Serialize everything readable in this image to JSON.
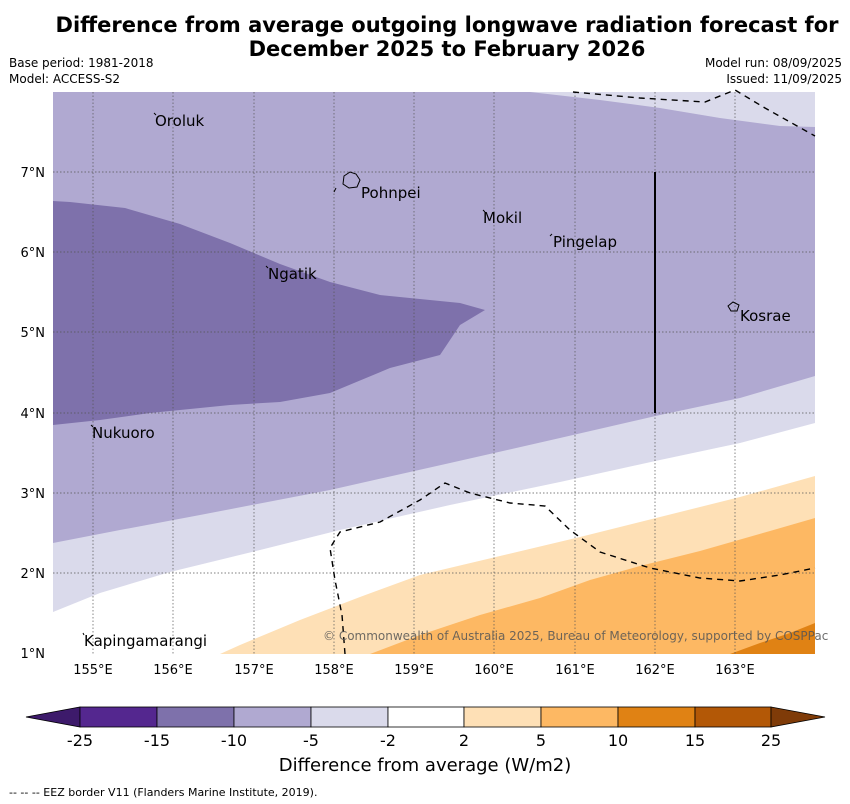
{
  "title_line1": "Difference from average outgoing longwave radiation forecast for",
  "title_line2": "December 2025 to February 2026",
  "base_period": "Base period: 1981-2018",
  "model": "Model: ACCESS-S2",
  "model_run": "Model run: 08/09/2025",
  "issued": "Issued: 11/09/2025",
  "copyright": "© Commonwealth of Australia 2025, Bureau of Meteorology, supported by COSPPac",
  "colorbar_title": "Difference from average (W/m2)",
  "footnote": "-- -- -- EEZ border V11 (Flanders Marine Institute, 2019).",
  "lon_labels": [
    "155°E",
    "156°E",
    "157°E",
    "158°E",
    "159°E",
    "160°E",
    "161°E",
    "162°E",
    "163°E"
  ],
  "lat_labels": [
    "7°N",
    "6°N",
    "5°N",
    "4°N",
    "3°N",
    "2°N",
    "1°N"
  ],
  "places": {
    "oroluk": "Oroluk",
    "pohnpei": "Pohnpei",
    "mokil": "Mokil",
    "pingelap": "Pingelap",
    "ngatik": "Ngatik",
    "kosrae": "Kosrae",
    "nukuoro": "Nukuoro",
    "kapingamarangi": "Kapingamarangi"
  },
  "colorbar": {
    "ticks": [
      "-25",
      "-15",
      "-10",
      "-5",
      "-2",
      "2",
      "5",
      "10",
      "15",
      "25"
    ],
    "colors": [
      "#3d1a6b",
      "#54278f",
      "#7e71ab",
      "#b0a9d1",
      "#dadaeb",
      "#ffffff",
      "#fee0b6",
      "#fdb863",
      "#e08214",
      "#b35806",
      "#7f3b08"
    ]
  }
}
